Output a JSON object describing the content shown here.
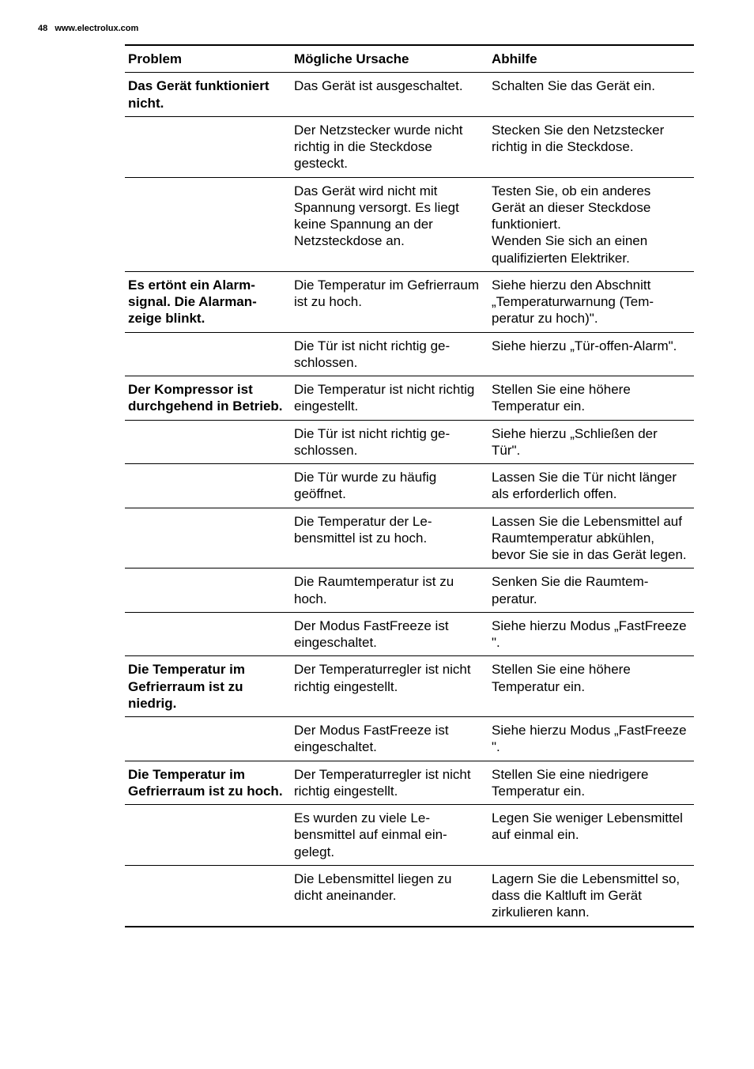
{
  "header": {
    "page_number": "48",
    "url": "www.electrolux.com"
  },
  "table": {
    "columns": [
      "Problem",
      "Mögliche Ursache",
      "Abhilfe"
    ],
    "rows": [
      {
        "problem": "Das Gerät funktio­niert nicht.",
        "cause": "Das Gerät ist ausgeschal­tet.",
        "remedy": "Schalten Sie das Gerät ein."
      },
      {
        "problem": "",
        "cause": "Der Netzstecker wurde nicht richtig in die Steck­dose gesteckt.",
        "remedy": "Stecken Sie den Netzste­cker richtig in die Steckdo­se."
      },
      {
        "problem": "",
        "cause": "Das Gerät wird nicht mit Spannung versorgt. Es liegt keine Spannung an der Netzsteckdose an.",
        "remedy": "Testen Sie, ob ein anderes Gerät an dieser Steckdose funktioniert.\nWenden Sie sich an einen qualifizierten Elektriker."
      },
      {
        "problem": "Es ertönt ein Alarm­signal. Die Alarman­zeige blinkt.",
        "cause": "Die Temperatur im Gefrier­raum ist zu hoch.",
        "remedy": "Siehe hierzu den Abschnitt „Temperaturwarnung (Tem­peratur zu hoch)\"."
      },
      {
        "problem": "",
        "cause": "Die Tür ist nicht richtig ge­schlossen.",
        "remedy": "Siehe hierzu „Tür-offen-Alarm\"."
      },
      {
        "problem": "Der Kompressor ist durchgehend in Be­trieb.",
        "cause": "Die Temperatur ist nicht richtig eingestellt.",
        "remedy": "Stellen Sie eine höhere Temperatur ein."
      },
      {
        "problem": "",
        "cause": "Die Tür ist nicht richtig ge­schlossen.",
        "remedy": "Siehe hierzu „Schließen der Tür\"."
      },
      {
        "problem": "",
        "cause": "Die Tür wurde zu häufig geöffnet.",
        "remedy": "Lassen Sie die Tür nicht länger als erforderlich offen."
      },
      {
        "problem": "",
        "cause": "Die Temperatur der Le­bensmittel ist zu hoch.",
        "remedy": "Lassen Sie die Lebensmittel auf Raumtemperatur ab­kühlen, bevor Sie sie in das Gerät legen."
      },
      {
        "problem": "",
        "cause": "Die Raumtemperatur ist zu hoch.",
        "remedy": "Senken Sie die Raumtem­peratur."
      },
      {
        "problem": "",
        "cause": "Der Modus FastFreeze ist eingeschaltet.",
        "remedy": "Siehe hierzu Modus „FastF­reeze \"."
      },
      {
        "problem": "Die Temperatur im Gefrierraum ist zu niedrig.",
        "cause": "Der Temperaturregler ist nicht richtig eingestellt.",
        "remedy": "Stellen Sie eine höhere Temperatur ein."
      },
      {
        "problem": "",
        "cause": "Der Modus FastFreeze ist eingeschaltet.",
        "remedy": "Siehe hierzu Modus „FastF­reeze \"."
      },
      {
        "problem": "Die Temperatur im Gefrierraum ist zu hoch.",
        "cause": "Der Temperaturregler ist nicht richtig eingestellt.",
        "remedy": "Stellen Sie eine niedrigere Temperatur ein."
      },
      {
        "problem": "",
        "cause": "Es wurden zu viele Le­bensmittel auf einmal ein­gelegt.",
        "remedy": "Legen Sie weniger Lebens­mittel auf einmal ein."
      },
      {
        "problem": "",
        "cause": "Die Lebensmittel liegen zu dicht aneinander.",
        "remedy": "Lagern Sie die Lebensmittel so, dass die Kaltluft im Ge­rät zirkulieren kann."
      }
    ]
  }
}
